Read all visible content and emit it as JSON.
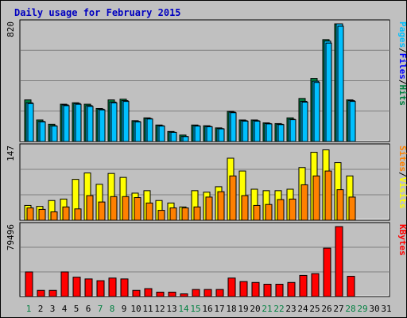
{
  "chart_data": {
    "type": "bar",
    "title": "Daily usage for February 2015",
    "days": [
      "1",
      "2",
      "3",
      "4",
      "5",
      "6",
      "7",
      "8",
      "9",
      "10",
      "11",
      "12",
      "13",
      "14",
      "15",
      "16",
      "17",
      "18",
      "19",
      "20",
      "21",
      "22",
      "23",
      "24",
      "25",
      "26",
      "27",
      "28",
      "29",
      "30",
      "31"
    ],
    "weekend_days": [
      "1",
      "7",
      "8",
      "14",
      "15",
      "21",
      "22",
      "28",
      "29"
    ],
    "colors": {
      "hits": "#008040",
      "files": "#00c0ff",
      "pages": "#00c0ff",
      "visits": "#ffff00",
      "sites": "#ff8000",
      "kbytes": "#ff0000",
      "weekday_label": "#000000",
      "weekend_label": "#008040"
    },
    "panels": [
      {
        "id": "hits-files-pages",
        "scale_label": "820",
        "ymax": 820,
        "legend": [
          {
            "text": "Pages",
            "color": "#00c0ff"
          },
          {
            "text": "Files",
            "color": "#0000ff"
          },
          {
            "text": "Hits",
            "color": "#008040"
          }
        ],
        "series": [
          {
            "name": "Hits",
            "values": [
              290,
              150,
              120,
              260,
              270,
              260,
              230,
              290,
              295,
              145,
              165,
              115,
              70,
              45,
              115,
              110,
              95,
              210,
              150,
              150,
              130,
              125,
              165,
              300,
              440,
              710,
              820,
              290,
              0,
              0,
              0
            ]
          },
          {
            "name": "Files",
            "values": [
              270,
              140,
              110,
              255,
              265,
              250,
              225,
              275,
              285,
              140,
              160,
              110,
              65,
              35,
              110,
              105,
              90,
              205,
              145,
              145,
              125,
              120,
              155,
              280,
              420,
              700,
              820,
              285,
              0,
              0,
              0
            ]
          },
          {
            "name": "Pages",
            "values": [
              270,
              140,
              110,
              255,
              265,
              250,
              225,
              275,
              285,
              140,
              160,
              110,
              65,
              35,
              110,
              105,
              90,
              205,
              145,
              145,
              125,
              120,
              155,
              280,
              420,
              700,
              820,
              285,
              0,
              0,
              0
            ]
          }
        ]
      },
      {
        "id": "visits-sites",
        "scale_label": "147",
        "ymax": 147,
        "legend": [
          {
            "text": "Sites",
            "color": "#ff8000"
          },
          {
            "text": "Visits",
            "color": "#ffff00"
          }
        ],
        "series": [
          {
            "name": "Visits",
            "values": [
              30,
              28,
              40,
              43,
              83,
              96,
              73,
              95,
              87,
              55,
              60,
              40,
              35,
              27,
              60,
              57,
              68,
              126,
              100,
              63,
              60,
              60,
              63,
              107,
              138,
              143,
              117,
              90,
              0,
              0,
              0
            ]
          },
          {
            "name": "Sites",
            "values": [
              25,
              22,
              17,
              27,
              23,
              50,
              37,
              48,
              48,
              46,
              35,
              20,
              25,
              25,
              27,
              47,
              58,
              90,
              50,
              30,
              32,
              42,
              43,
              72,
              90,
              100,
              62,
              47,
              0,
              0,
              0
            ]
          }
        ]
      },
      {
        "id": "kbytes",
        "scale_label": "79496",
        "ymax": 79496,
        "legend": [
          {
            "text": "KBytes",
            "color": "#ff0000"
          }
        ],
        "series": [
          {
            "name": "KBytes",
            "values": [
              28000,
              7000,
              7000,
              28000,
              22000,
              20000,
              18000,
              21000,
              20000,
              7000,
              9000,
              5000,
              5000,
              3000,
              8000,
              8000,
              8000,
              21000,
              17000,
              16000,
              14000,
              14000,
              16000,
              24000,
              26000,
              55000,
              79496,
              23000,
              0,
              0,
              0
            ]
          }
        ]
      }
    ]
  }
}
